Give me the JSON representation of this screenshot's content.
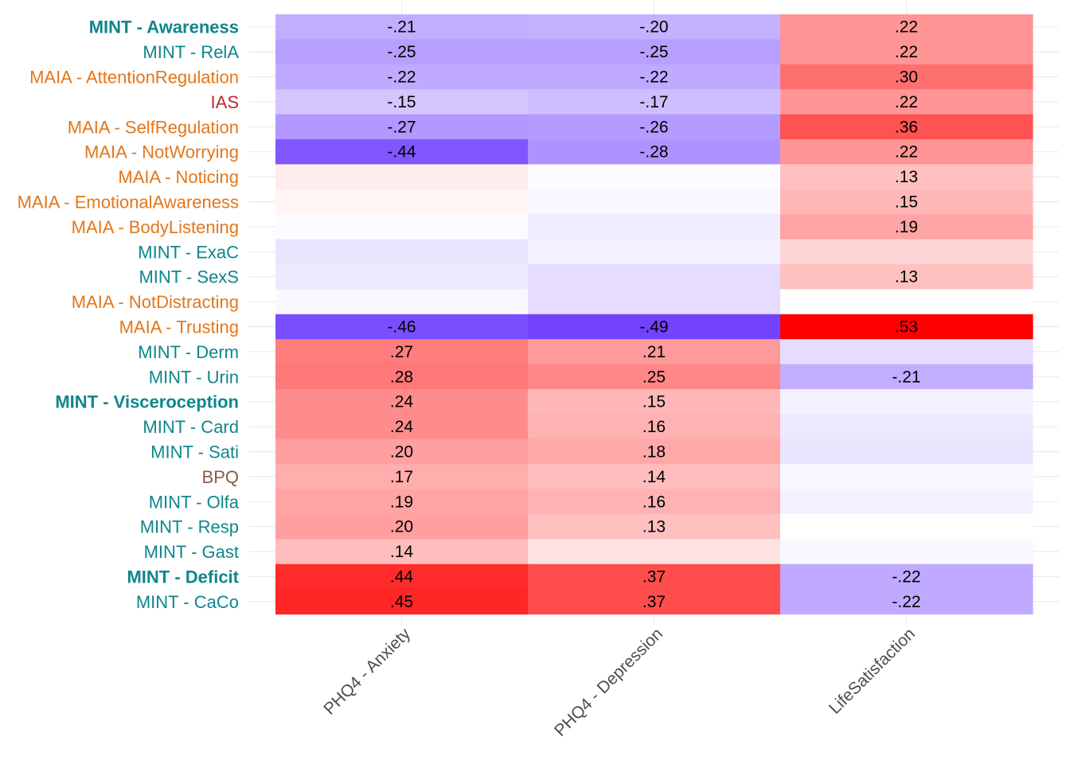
{
  "chart_data": {
    "type": "heatmap",
    "title": "",
    "xlabel": "",
    "ylabel": "",
    "x_categories": [
      "PHQ4 - Anxiety",
      "PHQ4 - Depression",
      "LifeSatisfaction"
    ],
    "y_categories": [
      {
        "label": "MINT - Awareness",
        "color": "#0f868c",
        "bold": true
      },
      {
        "label": "MINT - RelA",
        "color": "#0f868c",
        "bold": false
      },
      {
        "label": "MAIA - AttentionRegulation",
        "color": "#e4761b",
        "bold": false
      },
      {
        "label": "IAS",
        "color": "#c1272d",
        "bold": false
      },
      {
        "label": "MAIA - SelfRegulation",
        "color": "#e4761b",
        "bold": false
      },
      {
        "label": "MAIA - NotWorrying",
        "color": "#e4761b",
        "bold": false
      },
      {
        "label": "MAIA - Noticing",
        "color": "#e4761b",
        "bold": false
      },
      {
        "label": "MAIA - EmotionalAwareness",
        "color": "#e4761b",
        "bold": false
      },
      {
        "label": "MAIA - BodyListening",
        "color": "#e4761b",
        "bold": false
      },
      {
        "label": "MINT - ExaC",
        "color": "#0f868c",
        "bold": false
      },
      {
        "label": "MINT - SexS",
        "color": "#0f868c",
        "bold": false
      },
      {
        "label": "MAIA - NotDistracting",
        "color": "#e4761b",
        "bold": false
      },
      {
        "label": "MAIA - Trusting",
        "color": "#e4761b",
        "bold": false
      },
      {
        "label": "MINT - Derm",
        "color": "#0f868c",
        "bold": false
      },
      {
        "label": "MINT - Urin",
        "color": "#0f868c",
        "bold": false
      },
      {
        "label": "MINT - Visceroception",
        "color": "#0f868c",
        "bold": true
      },
      {
        "label": "MINT - Card",
        "color": "#0f868c",
        "bold": false
      },
      {
        "label": "MINT - Sati",
        "color": "#0f868c",
        "bold": false
      },
      {
        "label": "BPQ",
        "color": "#8c5a45",
        "bold": false
      },
      {
        "label": "MINT - Olfa",
        "color": "#0f868c",
        "bold": false
      },
      {
        "label": "MINT - Resp",
        "color": "#0f868c",
        "bold": false
      },
      {
        "label": "MINT - Gast",
        "color": "#0f868c",
        "bold": false
      },
      {
        "label": "MINT - Deficit",
        "color": "#0f868c",
        "bold": true
      },
      {
        "label": "MINT - CaCo",
        "color": "#0f868c",
        "bold": false
      }
    ],
    "values": [
      [
        -0.21,
        -0.2,
        0.22
      ],
      [
        -0.25,
        -0.25,
        0.22
      ],
      [
        -0.22,
        -0.22,
        0.3
      ],
      [
        -0.15,
        -0.17,
        0.22
      ],
      [
        -0.27,
        -0.26,
        0.36
      ],
      [
        -0.44,
        -0.28,
        0.22
      ],
      [
        0.04,
        -0.01,
        0.13
      ],
      [
        0.02,
        -0.02,
        0.15
      ],
      [
        -0.01,
        -0.05,
        0.19
      ],
      [
        -0.07,
        -0.04,
        0.09
      ],
      [
        -0.06,
        -0.09,
        0.13
      ],
      [
        -0.02,
        -0.09,
        0.0
      ],
      [
        -0.46,
        -0.49,
        0.53
      ],
      [
        0.27,
        0.21,
        -0.09
      ],
      [
        0.28,
        0.25,
        -0.21
      ],
      [
        0.24,
        0.15,
        -0.04
      ],
      [
        0.24,
        0.16,
        -0.06
      ],
      [
        0.2,
        0.18,
        -0.07
      ],
      [
        0.17,
        0.14,
        -0.02
      ],
      [
        0.19,
        0.16,
        -0.04
      ],
      [
        0.2,
        0.13,
        0.0
      ],
      [
        0.14,
        0.06,
        -0.02
      ],
      [
        0.44,
        0.37,
        -0.22
      ],
      [
        0.45,
        0.37,
        -0.22
      ]
    ],
    "cell_labels": [
      [
        "-.21",
        "-.20",
        ".22"
      ],
      [
        "-.25",
        "-.25",
        ".22"
      ],
      [
        "-.22",
        "-.22",
        ".30"
      ],
      [
        "-.15",
        "-.17",
        ".22"
      ],
      [
        "-.27",
        "-.26",
        ".36"
      ],
      [
        "-.44",
        "-.28",
        ".22"
      ],
      [
        "",
        "",
        ".13"
      ],
      [
        "",
        "",
        ".15"
      ],
      [
        "",
        "",
        ".19"
      ],
      [
        "",
        "",
        ""
      ],
      [
        "",
        "",
        ".13"
      ],
      [
        "",
        "",
        ""
      ],
      [
        "-.46",
        "-.49",
        ".53"
      ],
      [
        ".27",
        ".21",
        ""
      ],
      [
        ".28",
        ".25",
        "-.21"
      ],
      [
        ".24",
        ".15",
        ""
      ],
      [
        ".24",
        ".16",
        ""
      ],
      [
        ".20",
        ".18",
        ""
      ],
      [
        ".17",
        ".14",
        ""
      ],
      [
        ".19",
        ".16",
        ""
      ],
      [
        ".20",
        ".13",
        ""
      ],
      [
        ".14",
        "",
        ""
      ],
      [
        ".44",
        ".37",
        "-.22"
      ],
      [
        ".45",
        ".37",
        "-.22"
      ]
    ],
    "color_scale": {
      "negative": "#6633ff",
      "mid": "#ffffff",
      "positive": "#ff0000",
      "limit": 0.53
    },
    "grid": true,
    "legend": "none"
  }
}
